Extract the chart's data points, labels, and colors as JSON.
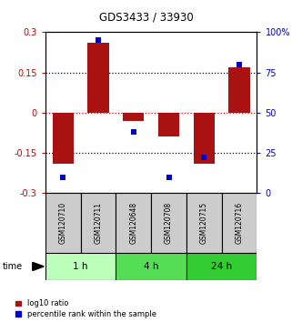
{
  "title": "GDS3433 / 33930",
  "samples": [
    "GSM120710",
    "GSM120711",
    "GSM120648",
    "GSM120708",
    "GSM120715",
    "GSM120716"
  ],
  "log10_ratio": [
    -0.19,
    0.26,
    -0.03,
    -0.09,
    -0.19,
    0.17
  ],
  "percentile_rank": [
    10,
    95,
    38,
    10,
    22,
    80
  ],
  "ylim_left": [
    -0.3,
    0.3
  ],
  "ylim_right": [
    0,
    100
  ],
  "yticks_left": [
    -0.3,
    -0.15,
    0,
    0.15,
    0.3
  ],
  "yticks_right": [
    0,
    25,
    50,
    75,
    100
  ],
  "ytick_labels_left": [
    "-0.3",
    "-0.15",
    "0",
    "0.15",
    "0.3"
  ],
  "ytick_labels_right": [
    "0",
    "25",
    "50",
    "75",
    "100%"
  ],
  "bar_color": "#AA1111",
  "dot_color": "#0000CC",
  "time_groups": [
    {
      "label": "1 h",
      "samples": [
        0,
        1
      ],
      "color": "#BBFFBB"
    },
    {
      "label": "4 h",
      "samples": [
        2,
        3
      ],
      "color": "#55DD55"
    },
    {
      "label": "24 h",
      "samples": [
        4,
        5
      ],
      "color": "#33CC33"
    }
  ],
  "xlabel_color_left": "#CC0000",
  "xlabel_color_right": "#0000CC",
  "bg_color": "#FFFFFF",
  "bar_width": 0.6
}
